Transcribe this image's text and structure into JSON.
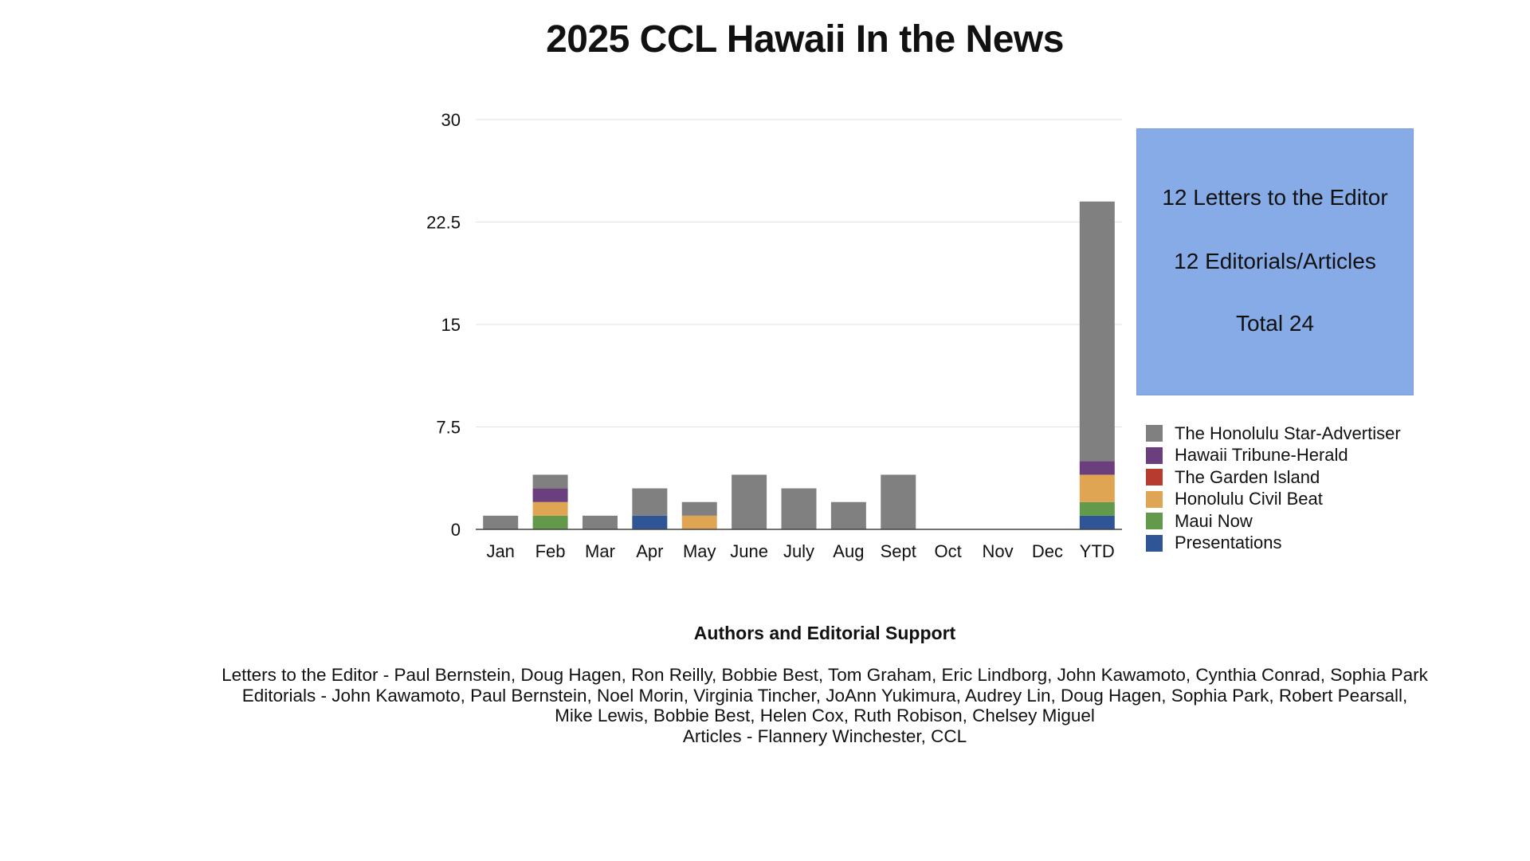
{
  "page": {
    "title": "2025 CCL Hawaii In the News"
  },
  "chart_data": {
    "type": "bar",
    "stacked": true,
    "categories": [
      "Jan",
      "Feb",
      "Mar",
      "Apr",
      "May",
      "June",
      "July",
      "Aug",
      "Sept",
      "Oct",
      "Nov",
      "Dec",
      "YTD"
    ],
    "series": [
      {
        "name": "Presentations",
        "color": "#2f5597",
        "values": [
          0,
          0,
          0,
          1,
          0,
          0,
          0,
          0,
          0,
          0,
          0,
          0,
          1
        ]
      },
      {
        "name": "Maui Now",
        "color": "#63994a",
        "values": [
          0,
          1,
          0,
          0,
          0,
          0,
          0,
          0,
          0,
          0,
          0,
          0,
          1
        ]
      },
      {
        "name": "Honolulu Civil Beat",
        "color": "#e0a553",
        "values": [
          0,
          1,
          0,
          0,
          1,
          0,
          0,
          0,
          0,
          0,
          0,
          0,
          2
        ]
      },
      {
        "name": "The Garden Island",
        "color": "#b83b2f",
        "values": [
          0,
          0,
          0,
          0,
          0,
          0,
          0,
          0,
          0,
          0,
          0,
          0,
          0
        ]
      },
      {
        "name": "Hawaii Tribune-Herald",
        "color": "#6b3f7d",
        "values": [
          0,
          1,
          0,
          0,
          0,
          0,
          0,
          0,
          0,
          0,
          0,
          0,
          1
        ]
      },
      {
        "name": "The Honolulu Star-Advertiser",
        "color": "#808080",
        "values": [
          1,
          1,
          1,
          2,
          1,
          4,
          3,
          2,
          4,
          0,
          0,
          0,
          19
        ]
      }
    ],
    "legend_order": [
      "The Honolulu Star-Advertiser",
      "Hawaii Tribune-Herald",
      "The Garden Island",
      "Honolulu Civil Beat",
      "Maui Now",
      "Presentations"
    ],
    "yticks": [
      "0",
      "7.5",
      "15",
      "22.5",
      "30"
    ],
    "ylim": [
      0,
      30
    ],
    "grid": true,
    "legend_position": "right",
    "xlabel": "",
    "ylabel": ""
  },
  "summary": {
    "letters": "12 Letters to the Editor",
    "editorials": "12 Editorials/Articles",
    "total": "Total 24"
  },
  "credits": {
    "heading": "Authors and Editorial Support",
    "lines": [
      "Letters to the Editor - Paul Bernstein, Doug Hagen, Ron Reilly, Bobbie Best, Tom Graham, Eric Lindborg, John Kawamoto, Cynthia Conrad, Sophia Park",
      "Editorials -  John Kawamoto, Paul Bernstein, Noel Morin, Virginia Tincher, JoAnn Yukimura, Audrey Lin, Doug Hagen, Sophia Park, Robert Pearsall,",
      "Mike Lewis, Bobbie Best, Helen Cox, Ruth Robison, Chelsey Miguel",
      "Articles - Flannery Winchester, CCL"
    ]
  }
}
